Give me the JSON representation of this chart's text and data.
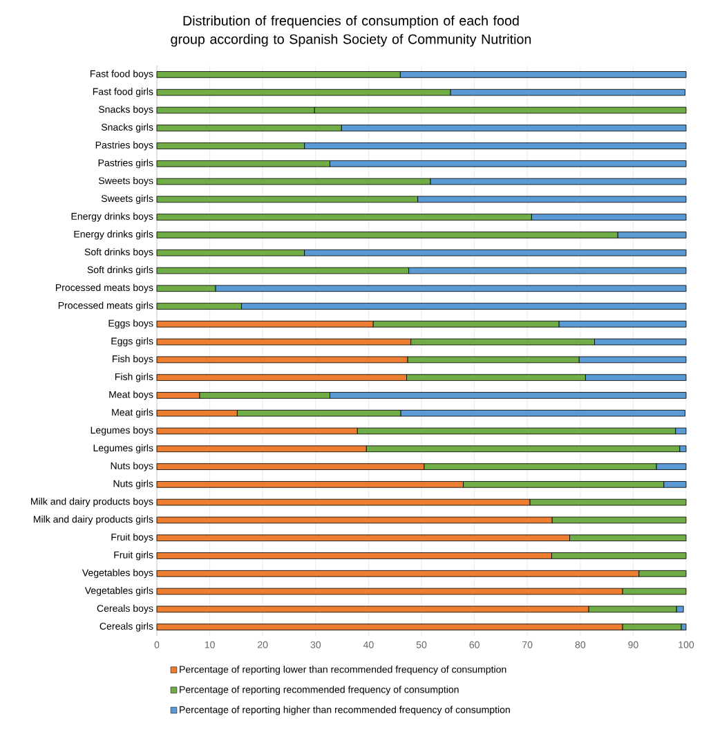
{
  "chart_data": {
    "type": "bar",
    "orientation": "horizontal",
    "stacked": true,
    "title": "Distribution of frequencies of consumption of each food group according to Spanish Society of Community Nutrition",
    "categories": [
      "Fast food boys",
      "Fast food girls",
      "Snacks boys",
      "Snacks girls",
      "Pastries boys",
      "Pastries girls",
      "Sweets boys",
      "Sweets girls",
      "Energy drinks boys",
      "Energy drinks girls",
      "Soft drinks boys",
      "Soft drinks girls",
      "Processed meats boys",
      "Processed meats girls",
      "Eggs boys",
      "Eggs girls",
      "Fish boys",
      "Fish girls",
      "Meat boys",
      "Meat girls",
      "Legumes boys",
      "Legumes girls",
      "Nuts boys",
      "Nuts girls",
      "Milk and dairy products boys",
      "Milk and dairy products girls",
      "Fruit boys",
      "Fruit girls",
      "Vegetables boys",
      "Vegetables girls",
      "Cereals boys",
      "Cereals girls"
    ],
    "series": [
      {
        "name": "Percentage of reporting lower than recommended frequency of consumption",
        "color": "#ed7d31",
        "values": [
          null,
          null,
          null,
          null,
          null,
          null,
          null,
          null,
          null,
          null,
          null,
          null,
          null,
          null,
          40.9,
          48.0,
          47.4,
          47.2,
          8.1,
          15.2,
          37.9,
          39.6,
          50.5,
          57.9,
          70.5,
          74.7,
          78.0,
          74.6,
          91.1,
          88.0,
          81.6,
          88.0
        ]
      },
      {
        "name": "Percentage of reporting recommended frequency of consumption",
        "color": "#70ad47",
        "values": [
          46.0,
          55.5,
          29.8,
          34.9,
          27.9,
          32.7,
          51.7,
          49.3,
          70.8,
          87.1,
          27.9,
          47.6,
          11.1,
          16.0,
          35.1,
          34.7,
          32.4,
          33.8,
          24.6,
          30.9,
          60.1,
          59.2,
          43.9,
          37.9,
          29.5,
          25.3,
          22.0,
          25.4,
          8.9,
          12.0,
          16.6,
          11.1
        ]
      },
      {
        "name": "Percentage of reporting higher than recommended frequency of consumption",
        "color": "#5b9bd5",
        "colors": [
          "#5b9bd5",
          "#5b9bd5",
          "#70ad47",
          "#5b9bd5",
          "#5b9bd5",
          "#5b9bd5",
          "#5b9bd5",
          "#5b9bd5",
          "#5b9bd5",
          "#5b9bd5",
          "#5b9bd5",
          "#5b9bd5",
          "#5b9bd5",
          "#5b9bd5",
          "#5b9bd5",
          "#5b9bd5",
          "#5b9bd5",
          "#5b9bd5",
          "#5b9bd5",
          "#5b9bd5",
          "#5b9bd5",
          "#5b9bd5",
          "#5b9bd5",
          "#5b9bd5",
          "#5b9bd5",
          "#5b9bd5",
          "#5b9bd5",
          "#5b9bd5",
          "#5b9bd5",
          "#5b9bd5",
          "#5b9bd5",
          "#5b9bd5"
        ],
        "values": [
          54.0,
          44.3,
          70.2,
          65.1,
          72.1,
          67.3,
          48.3,
          50.7,
          29.2,
          12.9,
          72.1,
          52.4,
          88.9,
          84.0,
          24.0,
          17.3,
          20.2,
          19.0,
          67.3,
          53.7,
          2.0,
          1.2,
          5.6,
          4.2,
          null,
          null,
          null,
          null,
          null,
          null,
          1.3,
          0.9
        ]
      }
    ],
    "xlim": [
      0,
      100
    ],
    "xticks": [
      0,
      10,
      20,
      30,
      40,
      50,
      60,
      70,
      80,
      90,
      100
    ],
    "grid": "x",
    "legend": "bottom"
  }
}
